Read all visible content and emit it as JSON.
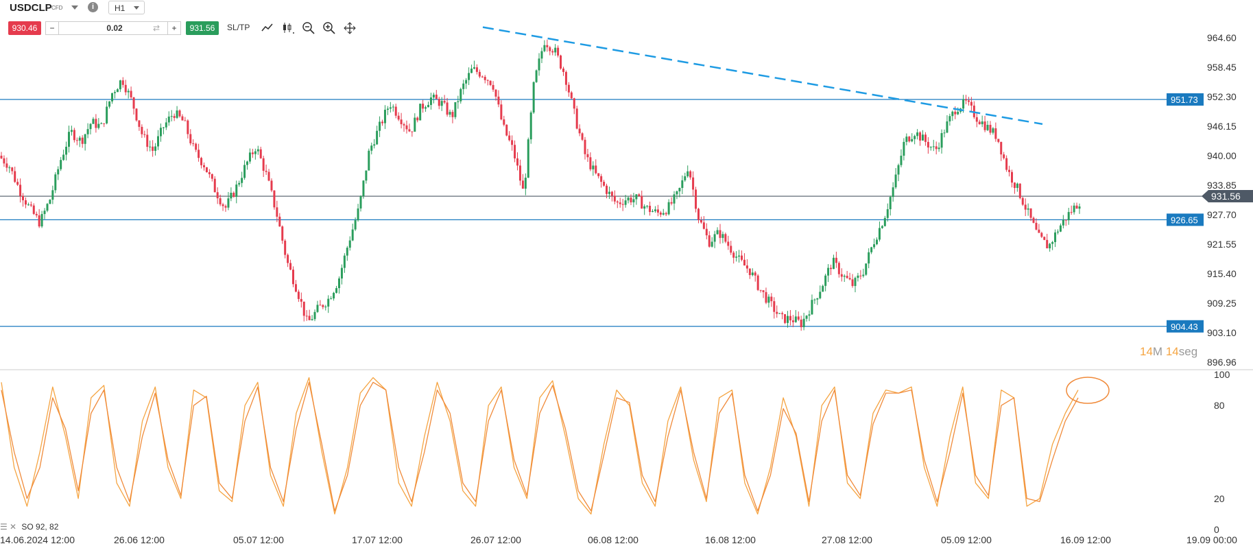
{
  "toolbar": {
    "symbol": "USDCLP",
    "instrument_type": "CFD",
    "timeframe": "H1",
    "sell_price": "930.46",
    "buy_price": "931.56",
    "quantity": "0.02",
    "minus_label": "−",
    "plus_label": "+",
    "sltp_label": "SL/TP",
    "info_label": "i",
    "icons": [
      "line-chart-icon",
      "candles-icon",
      "zoom-out-icon",
      "zoom-in-icon",
      "crosshair-move-icon"
    ]
  },
  "watermark": {
    "minutes": "14",
    "m_label": "M",
    "seconds": "14",
    "seg_label": "seg"
  },
  "indicator_label": "SO 92, 82",
  "colors": {
    "up": "#2a9d5c",
    "down": "#e53b4d",
    "hline": "#1a7abf",
    "trend": "#1e9be3",
    "price_tag": "#4e5966",
    "so_k": "#f5a441",
    "so_d": "#f08a3a"
  },
  "chart_data": [
    {
      "type": "candlestick",
      "title": "USDCLP H1",
      "y_ticks": [
        "964.60",
        "958.45",
        "952.30",
        "946.15",
        "940.00",
        "933.85",
        "927.70",
        "921.55",
        "915.40",
        "909.25",
        "903.10",
        "896.96"
      ],
      "ylim": [
        896.96,
        968.0
      ],
      "x_ticks": [
        "14.06.2024 12:00",
        "26.06 12:00",
        "05.07 12:00",
        "17.07 12:00",
        "26.07 12:00",
        "06.08 12:00",
        "16.08 12:00",
        "27.08 12:00",
        "05.09 12:00",
        "16.09 12:00",
        "19.09 00:00"
      ],
      "horizontal_lines": [
        {
          "label": "951.73",
          "value": 951.73
        },
        {
          "label": "926.65",
          "value": 926.65
        },
        {
          "label": "904.43",
          "value": 904.43
        }
      ],
      "current_price": {
        "label": "931.56",
        "value": 931.56
      },
      "trendline": {
        "style": "dashed",
        "from_value": 966.8,
        "to_value": 946.6
      },
      "series_path": [
        940,
        938,
        933,
        929,
        926,
        931,
        939,
        945,
        943,
        947,
        946,
        953,
        956,
        951,
        944,
        941,
        946,
        949,
        947,
        941,
        938,
        933,
        929,
        933,
        938,
        942,
        936,
        928,
        918,
        912,
        905,
        908,
        910,
        914,
        922,
        929,
        941,
        946,
        951,
        948,
        945,
        950,
        952,
        951,
        948,
        954,
        958,
        957,
        955,
        946,
        941,
        932,
        955,
        964,
        962,
        957,
        948,
        940,
        936,
        933,
        930,
        931,
        931,
        929,
        928,
        929,
        932,
        938,
        927,
        922,
        924,
        921,
        918,
        916,
        912,
        909,
        906,
        906,
        905,
        909,
        913,
        918,
        915,
        913,
        916,
        922,
        927,
        934,
        943,
        945,
        943,
        941,
        946,
        950,
        951,
        948,
        946,
        944,
        937,
        933,
        928,
        923,
        921,
        925,
        928,
        930.46
      ]
    },
    {
      "type": "line",
      "title": "SO 92, 82",
      "y_ticks": [
        "100",
        "80",
        "20",
        "0"
      ],
      "ylim": [
        0,
        100
      ],
      "series": [
        {
          "name": "%K",
          "values": [
            95,
            40,
            15,
            50,
            92,
            60,
            20,
            85,
            93,
            30,
            15,
            70,
            92,
            40,
            20,
            90,
            85,
            25,
            18,
            80,
            95,
            35,
            15,
            75,
            98,
            50,
            10,
            40,
            88,
            98,
            90,
            30,
            15,
            60,
            95,
            70,
            25,
            15,
            80,
            92,
            40,
            20,
            85,
            96,
            60,
            20,
            10,
            55,
            90,
            80,
            30,
            15,
            70,
            92,
            45,
            18,
            85,
            90,
            30,
            10,
            40,
            85,
            60,
            15,
            80,
            92,
            30,
            20,
            75,
            90,
            88,
            92,
            40,
            15,
            60,
            92,
            30,
            20,
            90,
            85,
            15,
            20,
            55,
            75,
            90
          ]
        },
        {
          "name": "%D",
          "values": [
            90,
            50,
            20,
            40,
            85,
            65,
            25,
            75,
            90,
            40,
            18,
            60,
            88,
            45,
            22,
            80,
            86,
            30,
            20,
            70,
            92,
            40,
            18,
            65,
            95,
            55,
            12,
            35,
            80,
            95,
            90,
            40,
            18,
            50,
            90,
            75,
            30,
            18,
            70,
            90,
            45,
            22,
            75,
            93,
            65,
            25,
            12,
            48,
            85,
            82,
            35,
            18,
            60,
            90,
            50,
            20,
            75,
            88,
            35,
            12,
            35,
            78,
            62,
            18,
            70,
            90,
            35,
            22,
            68,
            88,
            88,
            90,
            45,
            18,
            50,
            88,
            35,
            22,
            80,
            85,
            20,
            18,
            45,
            70,
            85
          ]
        }
      ]
    }
  ]
}
